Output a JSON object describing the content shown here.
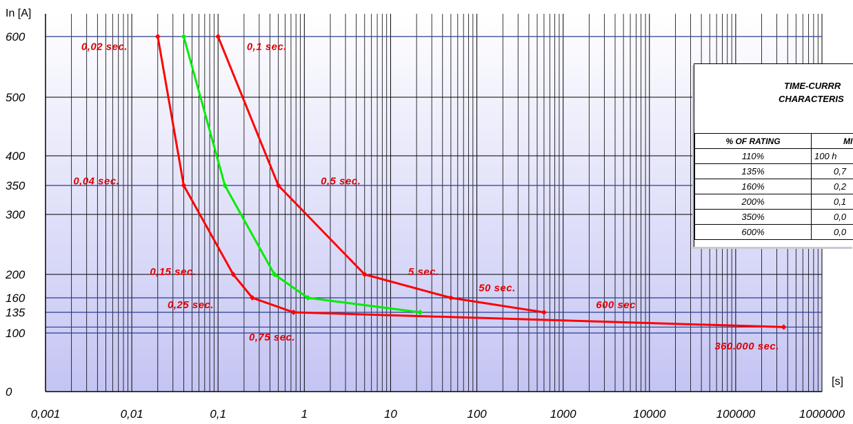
{
  "chart_data": {
    "type": "line",
    "x_unit": "[s]",
    "y_unit": "In [A]",
    "x_scale": "log",
    "xlim": [
      0.001,
      1000000
    ],
    "ylim": [
      0,
      600
    ],
    "x_ticks": [
      "0,001",
      "0,01",
      "0,1",
      "1",
      "10",
      "100",
      "1000",
      "10000",
      "100000",
      "1000000"
    ],
    "y_ticks": [
      {
        "label": "0",
        "value": 0
      },
      {
        "label": "100",
        "value": 100
      },
      {
        "label": "135",
        "value": 135
      },
      {
        "label": "160",
        "value": 160
      },
      {
        "label": "200",
        "value": 200
      },
      {
        "label": "300",
        "value": 300
      },
      {
        "label": "350",
        "value": 350
      },
      {
        "label": "400",
        "value": 400
      },
      {
        "label": "500",
        "value": 500
      },
      {
        "label": "600",
        "value": 600
      }
    ],
    "horizontal_reference_lines": [
      100,
      110,
      135,
      160,
      350,
      600
    ],
    "grid": true,
    "series": [
      {
        "color": "#ff0000",
        "points": [
          [
            0.02,
            600
          ],
          [
            0.04,
            350
          ],
          [
            0.15,
            200
          ],
          [
            0.25,
            160
          ],
          [
            0.75,
            135
          ],
          [
            360000,
            110
          ]
        ]
      },
      {
        "color": "#00ee00",
        "points": [
          [
            0.04,
            600
          ],
          [
            0.12,
            350
          ],
          [
            0.45,
            200
          ],
          [
            1.1,
            160
          ],
          [
            22,
            135
          ]
        ]
      },
      {
        "color": "#ff0000",
        "points": [
          [
            0.1,
            600
          ],
          [
            0.5,
            350
          ],
          [
            5,
            200
          ],
          [
            50,
            160
          ],
          [
            600,
            135
          ]
        ]
      }
    ],
    "annotations": [
      {
        "text": "0,02 sec.",
        "x": 0.0026,
        "y": 578
      },
      {
        "text": "0,1 sec.",
        "x": 0.215,
        "y": 578
      },
      {
        "text": "0,04 sec.",
        "x": 0.0021,
        "y": 352
      },
      {
        "text": "0,5 sec.",
        "x": 1.55,
        "y": 352
      },
      {
        "text": "0,15 sec.",
        "x": 0.0162,
        "y": 199
      },
      {
        "text": "5 sec.",
        "x": 16,
        "y": 199
      },
      {
        "text": "50 sec.",
        "x": 105,
        "y": 171
      },
      {
        "text": "0,25 sec.",
        "x": 0.026,
        "y": 142
      },
      {
        "text": "600 sec",
        "x": 2400,
        "y": 142
      },
      {
        "text": "0,75 sec.",
        "x": 0.228,
        "y": 87
      },
      {
        "text": "360.000 sec.",
        "x": 57000,
        "y": 72
      }
    ],
    "colors": {
      "plot_top": "#ffffff",
      "plot_bottom": "#c4c4f4",
      "ref_line": "#283c8c",
      "grid": "#000000"
    }
  },
  "table": {
    "title_line1": "TIME-CURRR",
    "title_line2": "CHARACTERIS",
    "headers": [
      "% OF RATING",
      "MI"
    ],
    "rows": [
      [
        "110%",
        "100 h"
      ],
      [
        "135%",
        "0,7"
      ],
      [
        "160%",
        "0,2"
      ],
      [
        "200%",
        "0,1"
      ],
      [
        "350%",
        "0,0"
      ],
      [
        "600%",
        "0,0"
      ]
    ]
  }
}
